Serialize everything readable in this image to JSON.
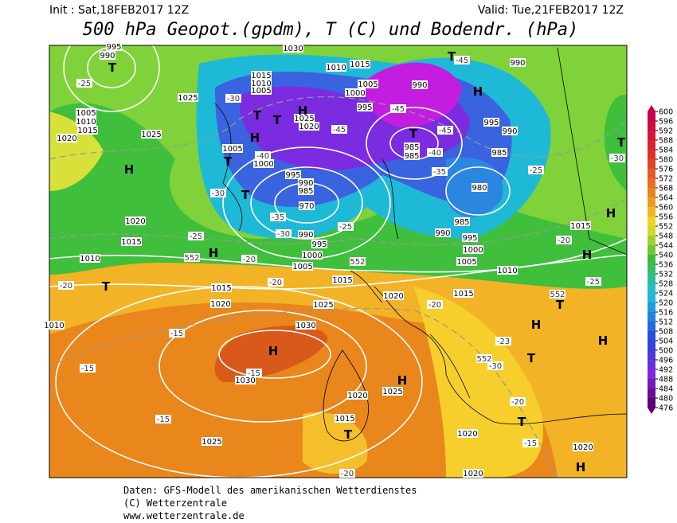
{
  "header": {
    "init": "Init : Sat,18FEB2017 12Z",
    "valid": "Valid: Tue,21FEB2017 12Z",
    "title": "500 hPa Geopot.(gpdm), T (C) und Bodendr. (hPa)"
  },
  "map": {
    "isobar_labels": [
      "995",
      "990",
      "1005",
      "1010",
      "1015",
      "1020",
      "1025",
      "1025",
      "1015",
      "1010",
      "1005",
      "1030",
      "1015",
      "1010",
      "1005",
      "1000",
      "995",
      "990",
      "1025",
      "1020",
      "985",
      "985",
      "1005",
      "1000",
      "995",
      "990",
      "985",
      "970",
      "990",
      "995",
      "1000",
      "1005",
      "1015",
      "995",
      "990",
      "985",
      "980",
      "985",
      "990",
      "995",
      "1000",
      "1005",
      "1010",
      "1015",
      "1020",
      "1015",
      "1010",
      "1015",
      "1020",
      "1025",
      "1020",
      "1015",
      "1030",
      "1030",
      "1020",
      "1025",
      "1015",
      "1020",
      "1025",
      "1020",
      "1020",
      "990",
      "1010"
    ],
    "temperature_labels": [
      "-25",
      "-30",
      "-40",
      "-45",
      "-45",
      "-45",
      "-45",
      "-40",
      "-35",
      "-30",
      "-35",
      "-30",
      "-25",
      "-25",
      "-20",
      "-25",
      "-20",
      "-25",
      "-30",
      "-20",
      "-20",
      "-20",
      "-15",
      "-15",
      "-15",
      "-15",
      "-23",
      "-30",
      "-20",
      "-15",
      "-20",
      "552",
      "552",
      "552",
      "552"
    ],
    "pressure_centers": [
      "T",
      "H",
      "T",
      "H",
      "T",
      "H",
      "H",
      "T",
      "T",
      "T",
      "T",
      "T",
      "H",
      "T",
      "H",
      "H",
      "T",
      "H",
      "H",
      "T",
      "H",
      "T",
      "H",
      "T",
      "H"
    ]
  },
  "colorbar": {
    "labels": [
      600,
      596,
      592,
      588,
      584,
      580,
      576,
      572,
      568,
      564,
      560,
      556,
      552,
      548,
      544,
      540,
      536,
      532,
      528,
      524,
      520,
      516,
      512,
      508,
      504,
      500,
      496,
      492,
      488,
      484,
      480,
      476
    ]
  },
  "footer": {
    "source": "Daten: GFS-Modell des amerikanischen Wetterdienstes",
    "copyright": "(C) Wetterzentrale",
    "url": "www.wetterzentrale.de"
  }
}
